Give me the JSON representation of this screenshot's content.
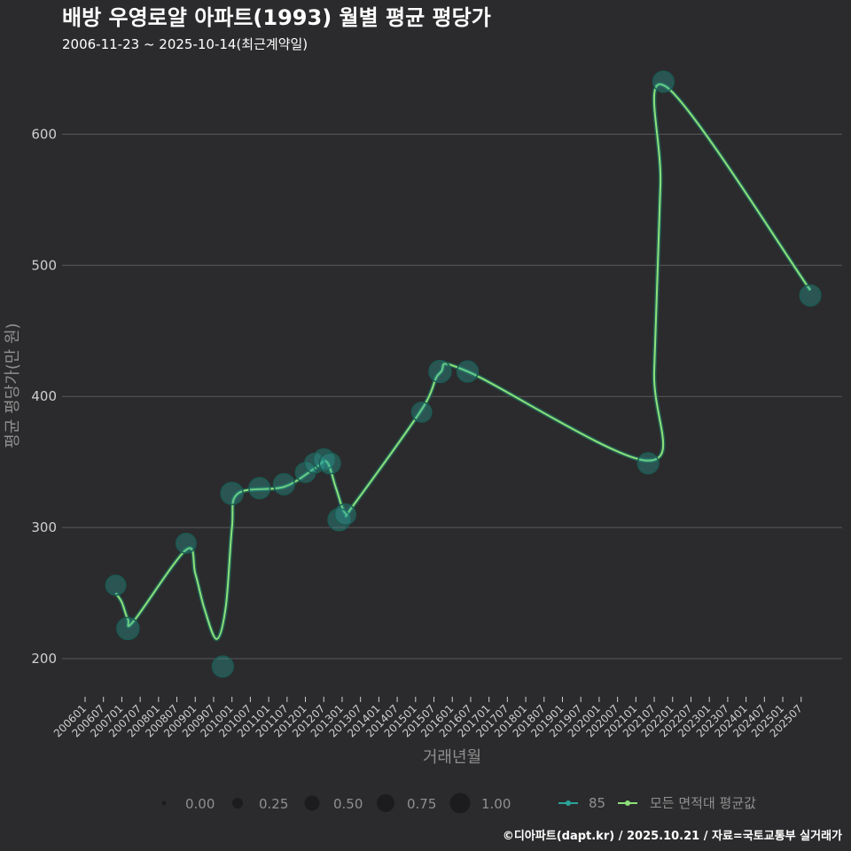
{
  "chart_data": {
    "type": "scatter",
    "title": "배방 우영로얄 아파트(1993) 월별 평균 평당가",
    "subtitle": "2006-11-23 ~ 2025-10-14(최근계약일)",
    "xlabel": "거래년월",
    "ylabel": "평균 평당가(만 원)",
    "xlim": [
      "2006-01",
      "2025-12"
    ],
    "ylim": [
      175,
      655
    ],
    "yticks": [
      200,
      300,
      400,
      500,
      600
    ],
    "xticks": [
      "200601",
      "200607",
      "200701",
      "200707",
      "200801",
      "200807",
      "200901",
      "200907",
      "201001",
      "201007",
      "201101",
      "201107",
      "201201",
      "201207",
      "201301",
      "201307",
      "201401",
      "201407",
      "201501",
      "201507",
      "201601",
      "201607",
      "201701",
      "201707",
      "201801",
      "201807",
      "201901",
      "201907",
      "202001",
      "202007",
      "202101",
      "202107",
      "202201",
      "202207",
      "202301",
      "202307",
      "202401",
      "202407",
      "202501",
      "202507"
    ],
    "series": [
      {
        "name": "85",
        "color": "#2aa39a",
        "points": [
          {
            "x": "2006-11",
            "y": 256,
            "size": 0.55
          },
          {
            "x": "2007-03",
            "y": 223,
            "size": 0.65
          },
          {
            "x": "2008-10",
            "y": 288,
            "size": 0.55
          },
          {
            "x": "2009-10",
            "y": 194,
            "size": 0.6
          },
          {
            "x": "2010-01",
            "y": 326,
            "size": 0.65
          },
          {
            "x": "2010-10",
            "y": 330,
            "size": 0.6
          },
          {
            "x": "2011-06",
            "y": 333,
            "size": 0.6
          },
          {
            "x": "2012-01",
            "y": 342,
            "size": 0.55
          },
          {
            "x": "2012-04",
            "y": 349,
            "size": 0.55
          },
          {
            "x": "2012-07",
            "y": 352,
            "size": 0.6
          },
          {
            "x": "2012-09",
            "y": 349,
            "size": 0.6
          },
          {
            "x": "2012-12",
            "y": 306,
            "size": 0.65
          },
          {
            "x": "2013-02",
            "y": 310,
            "size": 0.6
          },
          {
            "x": "2015-03",
            "y": 388,
            "size": 0.55
          },
          {
            "x": "2015-09",
            "y": 419,
            "size": 0.65
          },
          {
            "x": "2016-06",
            "y": 419,
            "size": 0.6
          },
          {
            "x": "2021-05",
            "y": 349,
            "size": 0.6
          },
          {
            "x": "2021-10",
            "y": 640,
            "size": 0.6
          },
          {
            "x": "2025-10",
            "y": 477,
            "size": 0.6
          }
        ]
      },
      {
        "name": "모든 면적대 평균값",
        "color": "#8ee07a",
        "line": [
          {
            "x": "2006-11",
            "y": 250
          },
          {
            "x": "2007-01",
            "y": 243
          },
          {
            "x": "2007-03",
            "y": 230
          },
          {
            "x": "2007-05",
            "y": 229
          },
          {
            "x": "2008-10",
            "y": 283
          },
          {
            "x": "2009-01",
            "y": 265
          },
          {
            "x": "2009-04",
            "y": 238
          },
          {
            "x": "2009-08",
            "y": 215
          },
          {
            "x": "2009-11",
            "y": 240
          },
          {
            "x": "2010-01",
            "y": 300
          },
          {
            "x": "2010-03",
            "y": 326
          },
          {
            "x": "2011-06",
            "y": 331
          },
          {
            "x": "2012-04",
            "y": 345
          },
          {
            "x": "2012-08",
            "y": 350
          },
          {
            "x": "2012-11",
            "y": 330
          },
          {
            "x": "2013-02",
            "y": 311
          },
          {
            "x": "2013-05",
            "y": 318
          },
          {
            "x": "2015-03",
            "y": 390
          },
          {
            "x": "2015-09",
            "y": 418
          },
          {
            "x": "2016-06",
            "y": 419
          },
          {
            "x": "2021-05",
            "y": 351
          },
          {
            "x": "2021-07",
            "y": 420
          },
          {
            "x": "2021-09",
            "y": 560
          },
          {
            "x": "2021-11",
            "y": 636
          },
          {
            "x": "2025-10",
            "y": 481
          }
        ]
      }
    ],
    "size_legend": [
      "0.00",
      "0.25",
      "0.50",
      "0.75",
      "1.00"
    ],
    "caption": "©디아파트(dapt.kr) / 2025.10.21 / 자료=국토교통부 실거래가"
  }
}
